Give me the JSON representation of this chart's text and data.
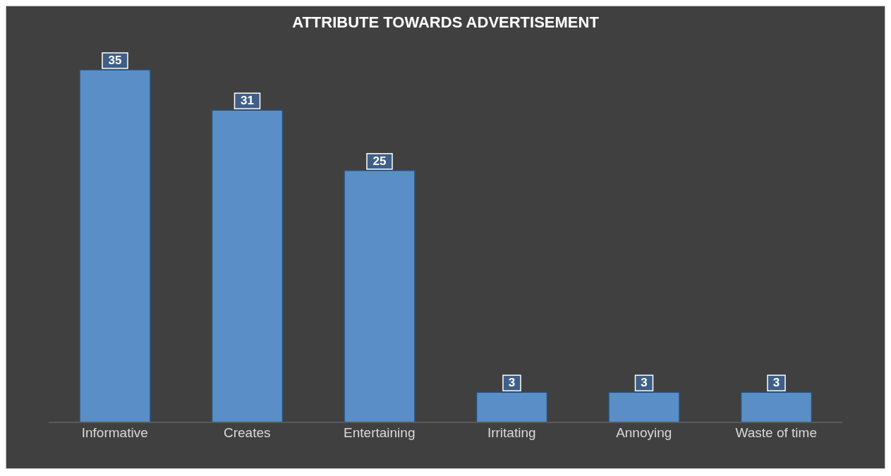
{
  "chart_data": {
    "type": "bar",
    "title": "ATTRIBUTE TOWARDS ADVERTISEMENT",
    "categories": [
      "Informative",
      "Creates",
      "Entertaining",
      "Irritating",
      "Annoying",
      "Waste of time"
    ],
    "values": [
      35,
      31,
      25,
      3,
      3,
      3
    ],
    "color": "#5a8ec6",
    "data_labels": true
  }
}
